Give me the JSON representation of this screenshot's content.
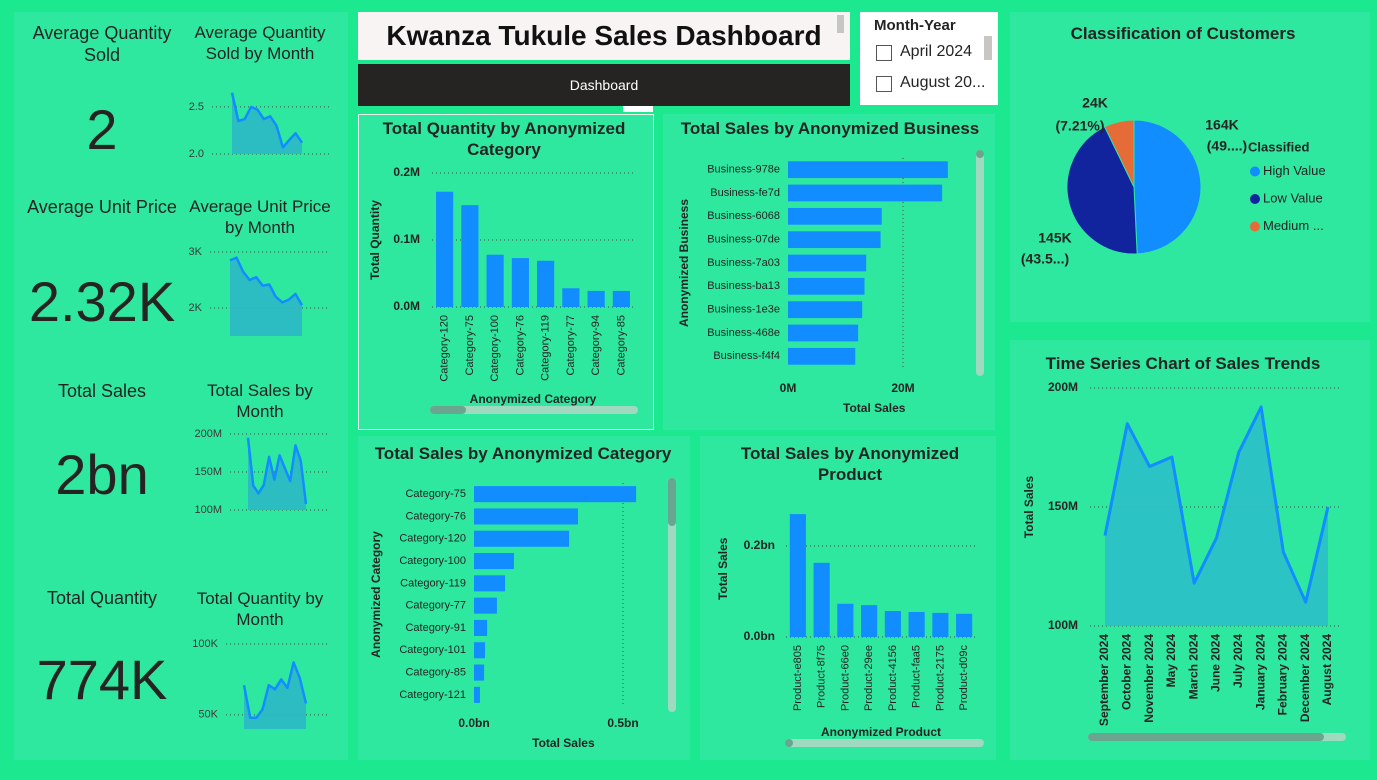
{
  "header": {
    "title": "Kwanza Tukule Sales Dashboard",
    "button": "Dashboard"
  },
  "slicer": {
    "title": "Month-Year",
    "items": [
      "April 2024",
      "August 20..."
    ]
  },
  "cards": [
    {
      "label": "Average Quantity Sold",
      "value": "2"
    },
    {
      "label": "Average Unit Price",
      "value": "2.32K"
    },
    {
      "label": "Total Sales",
      "value": "2bn"
    },
    {
      "label": "Total Quantity",
      "value": "774K"
    }
  ],
  "chart_data": [
    {
      "type": "area",
      "title": "Average Quantity Sold by Month",
      "values": [
        2.65,
        2.35,
        2.37,
        2.5,
        2.47,
        2.37,
        2.4,
        2.3,
        2.07,
        2.15,
        2.22,
        2.12
      ],
      "color": "#118DFF",
      "ylim": [
        2,
        2.7
      ],
      "yticks": [
        {
          "value": 2,
          "label": "2.0"
        },
        2.5
      ],
      "grid": true
    },
    {
      "type": "area",
      "title": "Average Unit Price by Month",
      "values": [
        2850,
        2900,
        2650,
        2500,
        2550,
        2400,
        2420,
        2200,
        2100,
        2150,
        2250,
        2050
      ],
      "color": "#118DFF",
      "ylim": [
        1500,
        3000
      ],
      "yticks": [
        {
          "value": 2000,
          "label": "2K"
        },
        {
          "value": 3000,
          "label": "3K"
        }
      ],
      "grid": true
    },
    {
      "type": "area",
      "title": "Total Sales by Month",
      "values": [
        195000000,
        132000000,
        122000000,
        133000000,
        170000000,
        140000000,
        172000000,
        155000000,
        138000000,
        185000000,
        165000000,
        108000000
      ],
      "color": "#118DFF",
      "ylim": [
        100000000,
        200000000
      ],
      "yticks": [
        {
          "value": 100000000,
          "label": "100M"
        },
        {
          "value": 150000000,
          "label": "150M"
        },
        {
          "value": 200000000,
          "label": "200M"
        }
      ],
      "grid": true
    },
    {
      "type": "area",
      "title": "Total Quantity by Month",
      "values": [
        71000,
        48000,
        48000,
        54000,
        71000,
        68000,
        75000,
        69000,
        87000,
        76000,
        58000
      ],
      "color": "#118DFF",
      "ylim": [
        40000,
        100000
      ],
      "yticks": [
        {
          "value": 50000,
          "label": "50K"
        },
        {
          "value": 100000,
          "label": "100K"
        }
      ],
      "grid": true
    },
    {
      "type": "bar",
      "orientation": "vertical",
      "title": "Total Quantity by Anonymized Category",
      "x_label": "Anonymized Category",
      "y_label": "Total Quantity",
      "categories": [
        "Category-120",
        "Category-75",
        "Category-100",
        "Category-76",
        "Category-119",
        "Category-77",
        "Category-94",
        "Category-85"
      ],
      "values": [
        172000,
        152000,
        78000,
        73000,
        69000,
        28000,
        24000,
        24000
      ],
      "color": "#118DFF",
      "ylim": [
        0,
        200000
      ],
      "yticks": [
        {
          "value": 0,
          "label": "0.0M"
        },
        {
          "value": 100000,
          "label": "0.1M"
        },
        {
          "value": 200000,
          "label": "0.2M"
        }
      ],
      "grid": true
    },
    {
      "type": "bar",
      "orientation": "horizontal",
      "title": "Total Sales by Anonymized Business",
      "x_label": "Total Sales",
      "y_label": "Anonymized Business",
      "categories": [
        "Business-978e",
        "Business-fe7d",
        "Business-6068",
        "Business-07de",
        "Business-7a03",
        "Business-ba13",
        "Business-1e3e",
        "Business-468e",
        "Business-f4f4"
      ],
      "values": [
        27800000,
        26800000,
        16300000,
        16100000,
        13600000,
        13300000,
        12900000,
        12200000,
        11700000
      ],
      "color": "#118DFF",
      "xlim": [
        0,
        30000000
      ],
      "xticks": [
        {
          "value": 0,
          "label": "0M"
        },
        {
          "value": 20000000,
          "label": "20M"
        }
      ],
      "grid": true
    },
    {
      "type": "pie",
      "title": "Classification of Customers",
      "legend_title": "Classified",
      "labels": [
        "High Value",
        "Low Value",
        "Medium ..."
      ],
      "values": [
        164000,
        145000,
        24000
      ],
      "value_labels": [
        "164K",
        "145K",
        "24K"
      ],
      "percent_labels": [
        "(49....)",
        "(43.5...)",
        "(7.21%)"
      ],
      "colors": [
        "#118DFF",
        "#12239E",
        "#E66C37"
      ],
      "legend": "right"
    },
    {
      "type": "bar",
      "orientation": "horizontal",
      "title": "Total Sales by Anonymized Category",
      "x_label": "Total Sales",
      "y_label": "Anonymized Category",
      "categories": [
        "Category-75",
        "Category-76",
        "Category-120",
        "Category-100",
        "Category-119",
        "Category-77",
        "Category-91",
        "Category-101",
        "Category-85",
        "Category-121"
      ],
      "values": [
        544000000,
        349000000,
        319000000,
        134000000,
        104000000,
        77000000,
        44000000,
        37000000,
        34000000,
        20000000
      ],
      "color": "#118DFF",
      "xlim": [
        0,
        600000000
      ],
      "xticks": [
        {
          "value": 0,
          "label": "0.0bn"
        },
        {
          "value": 500000000,
          "label": "0.5bn"
        }
      ],
      "grid": true
    },
    {
      "type": "bar",
      "orientation": "vertical",
      "title": "Total Sales by Anonymized Product",
      "x_label": "Anonymized Product",
      "y_label": "Total Sales",
      "categories": [
        "Product-e805",
        "Product-8f75",
        "Product-66e0",
        "Product-29ee",
        "Product-4156",
        "Product-faa5",
        "Product-2175",
        "Product-d09c"
      ],
      "values": [
        270000000,
        163000000,
        73000000,
        70000000,
        57000000,
        55000000,
        53000000,
        51000000
      ],
      "color": "#118DFF",
      "ylim": [
        0,
        300000000
      ],
      "yticks": [
        {
          "value": 0,
          "label": "0.0bn"
        },
        {
          "value": 200000000,
          "label": "0.2bn"
        }
      ],
      "grid": true
    },
    {
      "type": "area",
      "title": "Time Series Chart of Sales Trends",
      "y_label": "Total Sales",
      "categories": [
        "September 2024",
        "October 2024",
        "November 2024",
        "May 2024",
        "March 2024",
        "June 2024",
        "July 2024",
        "January 2024",
        "February 2024",
        "December 2024",
        "August 2024"
      ],
      "values": [
        138000000,
        185000000,
        167000000,
        171000000,
        118000000,
        137000000,
        173000000,
        192000000,
        131000000,
        110000000,
        150000000
      ],
      "color": "#118DFF",
      "ylim": [
        100000000,
        200000000
      ],
      "yticks": [
        {
          "value": 100000000,
          "label": "100M"
        },
        {
          "value": 150000000,
          "label": "150M"
        },
        {
          "value": 200000000,
          "label": "200M"
        }
      ],
      "grid": true
    }
  ]
}
